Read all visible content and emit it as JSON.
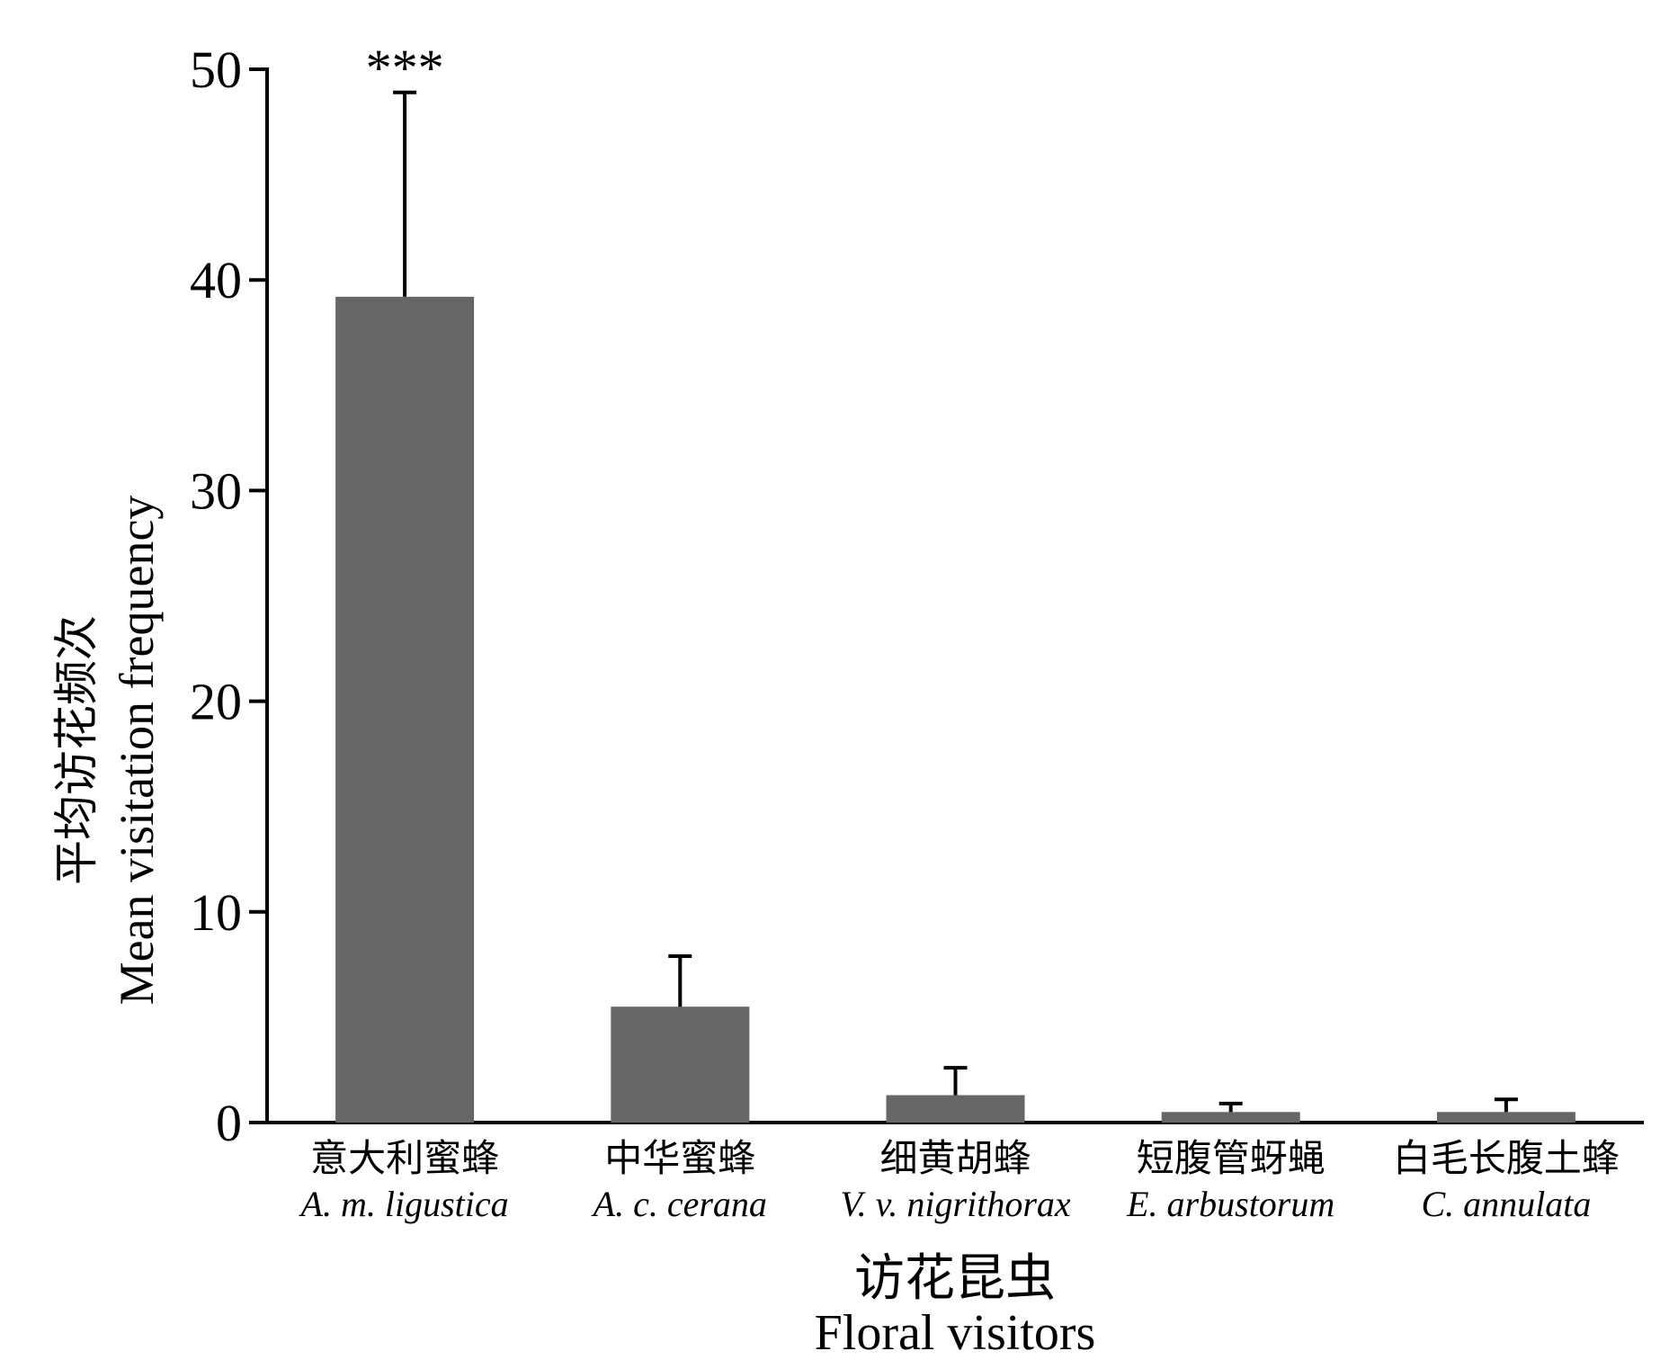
{
  "chart_data": {
    "type": "bar",
    "categories": [
      {
        "zh": "意大利蜜蜂",
        "en": "A. m. ligustica"
      },
      {
        "zh": "中华蜜蜂",
        "en": "A. c. cerana"
      },
      {
        "zh": "细黄胡蜂",
        "en": "V. v. nigrithorax"
      },
      {
        "zh": "短腹管蚜蝇",
        "en": "E. arbustorum"
      },
      {
        "zh": "白毛长腹土蜂",
        "en": "C. annulata"
      }
    ],
    "values": [
      39.2,
      5.5,
      1.3,
      0.5,
      0.5
    ],
    "errors": [
      9.7,
      2.4,
      1.3,
      0.4,
      0.6
    ],
    "annotations": [
      {
        "category_index": 0,
        "text": "***"
      }
    ],
    "ylim": [
      0,
      50
    ],
    "yticks": [
      0,
      10,
      20,
      30,
      40,
      50
    ],
    "ylabel_zh": "平均访花频次",
    "ylabel_en": "Mean visitation frequency",
    "xlabel_zh": "访花昆虫",
    "xlabel_en": "Floral visitors",
    "bar_color": "#666666",
    "axis_color": "#000000",
    "grid": false
  }
}
